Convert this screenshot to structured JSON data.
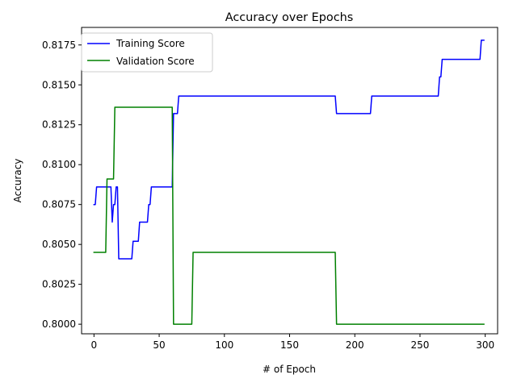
{
  "chart_data": {
    "type": "line",
    "title": "Accuracy over Epochs",
    "xlabel": "# of Epoch",
    "ylabel": "Accuracy",
    "xlim": [
      -9.5,
      309.5
    ],
    "ylim": [
      0.7994,
      0.8186
    ],
    "xticks": [
      0,
      50,
      100,
      150,
      200,
      250,
      300
    ],
    "yticks": [
      0.8,
      0.8025,
      0.805,
      0.8075,
      0.81,
      0.8125,
      0.815,
      0.8175
    ],
    "ytick_labels": [
      "0.8000",
      "0.8025",
      "0.8050",
      "0.8075",
      "0.8100",
      "0.8125",
      "0.8150",
      "0.8175"
    ],
    "legend_position": "top-left",
    "grid": false,
    "series": [
      {
        "name": "Training Score",
        "color": "#0000ff",
        "x": [
          0,
          1,
          2,
          13,
          14,
          15,
          16,
          17,
          18,
          19,
          20,
          29,
          30,
          34,
          35,
          41,
          42,
          43,
          44,
          59,
          60,
          61,
          64,
          65,
          66,
          185,
          186,
          211,
          212,
          213,
          264,
          265,
          266,
          267,
          296,
          297,
          299
        ],
        "y": [
          0.8075,
          0.8075,
          0.8086,
          0.8086,
          0.8064,
          0.8075,
          0.8075,
          0.8086,
          0.8086,
          0.8041,
          0.8041,
          0.8041,
          0.8052,
          0.8052,
          0.8064,
          0.8064,
          0.8075,
          0.8075,
          0.8086,
          0.8086,
          0.8086,
          0.8132,
          0.8132,
          0.8143,
          0.8143,
          0.8143,
          0.8132,
          0.8132,
          0.8132,
          0.8143,
          0.8143,
          0.8155,
          0.8155,
          0.8166,
          0.8166,
          0.8178,
          0.8178
        ]
      },
      {
        "name": "Validation Score",
        "color": "#008000",
        "x": [
          0,
          9,
          10,
          15,
          16,
          60,
          61,
          75,
          76,
          185,
          186,
          299
        ],
        "y": [
          0.8045,
          0.8045,
          0.8091,
          0.8091,
          0.8136,
          0.8136,
          0.8,
          0.8,
          0.8045,
          0.8045,
          0.8,
          0.8
        ]
      }
    ]
  }
}
